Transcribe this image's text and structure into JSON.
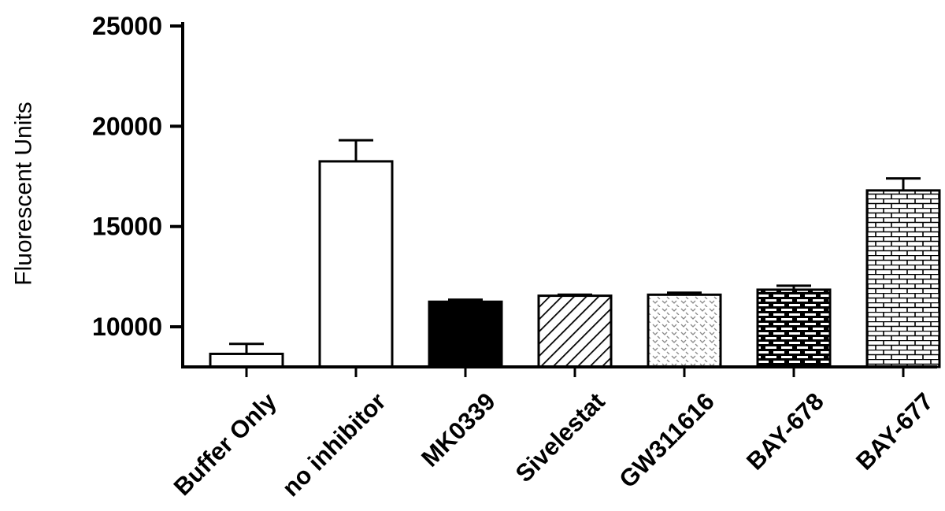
{
  "chart_data": {
    "type": "bar",
    "title": "",
    "xlabel": "",
    "ylabel": "Fluorescent Units",
    "ylim": [
      8000,
      25000
    ],
    "yticks": [
      10000,
      15000,
      20000,
      25000
    ],
    "ytick_labels": [
      "10000",
      "15000",
      "20000",
      "25000"
    ],
    "categories": [
      "Buffer Only",
      "no inhibitor",
      "MK0339",
      "Sivelestat",
      "GW311616",
      "BAY-678",
      "BAY-677"
    ],
    "values": [
      8650,
      18250,
      11250,
      11550,
      11600,
      11850,
      16800
    ],
    "errors": [
      500,
      1050,
      100,
      50,
      100,
      200,
      600
    ],
    "fills": [
      "white",
      "white",
      "black",
      "diagonal-hatch",
      "dotted",
      "brick-dark",
      "brick-light"
    ],
    "grid": false,
    "legend": "none"
  }
}
